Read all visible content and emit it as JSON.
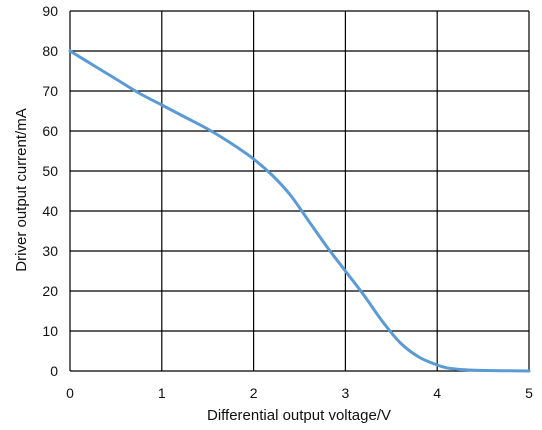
{
  "chart_data": {
    "type": "line",
    "title": "",
    "xlabel": "Differential output voltage/V",
    "ylabel": "Driver output current/mA",
    "xlim": [
      0,
      5
    ],
    "ylim": [
      0,
      90
    ],
    "xticks": [
      "0",
      "1",
      "2",
      "3",
      "4",
      "5"
    ],
    "yticks": [
      "0",
      "10",
      "20",
      "30",
      "40",
      "50",
      "60",
      "70",
      "80",
      "90"
    ],
    "grid": true,
    "legend": "none",
    "series": [
      {
        "color": "#5b9bd5",
        "x": [
          0,
          0.25,
          0.5,
          0.75,
          1.0,
          1.25,
          1.5,
          1.75,
          2.0,
          2.2,
          2.4,
          2.6,
          2.8,
          3.0,
          3.2,
          3.4,
          3.6,
          3.8,
          4.0,
          4.1,
          4.2,
          4.3,
          4.4,
          4.6,
          4.8,
          5.0
        ],
        "y": [
          80,
          76.5,
          73,
          69.5,
          66.5,
          63.5,
          60.5,
          57,
          53,
          49,
          44,
          37.5,
          31,
          25,
          19,
          12.5,
          7,
          3.5,
          1.5,
          0.8,
          0.5,
          0.3,
          0.2,
          0.1,
          0.05,
          0
        ]
      }
    ]
  }
}
